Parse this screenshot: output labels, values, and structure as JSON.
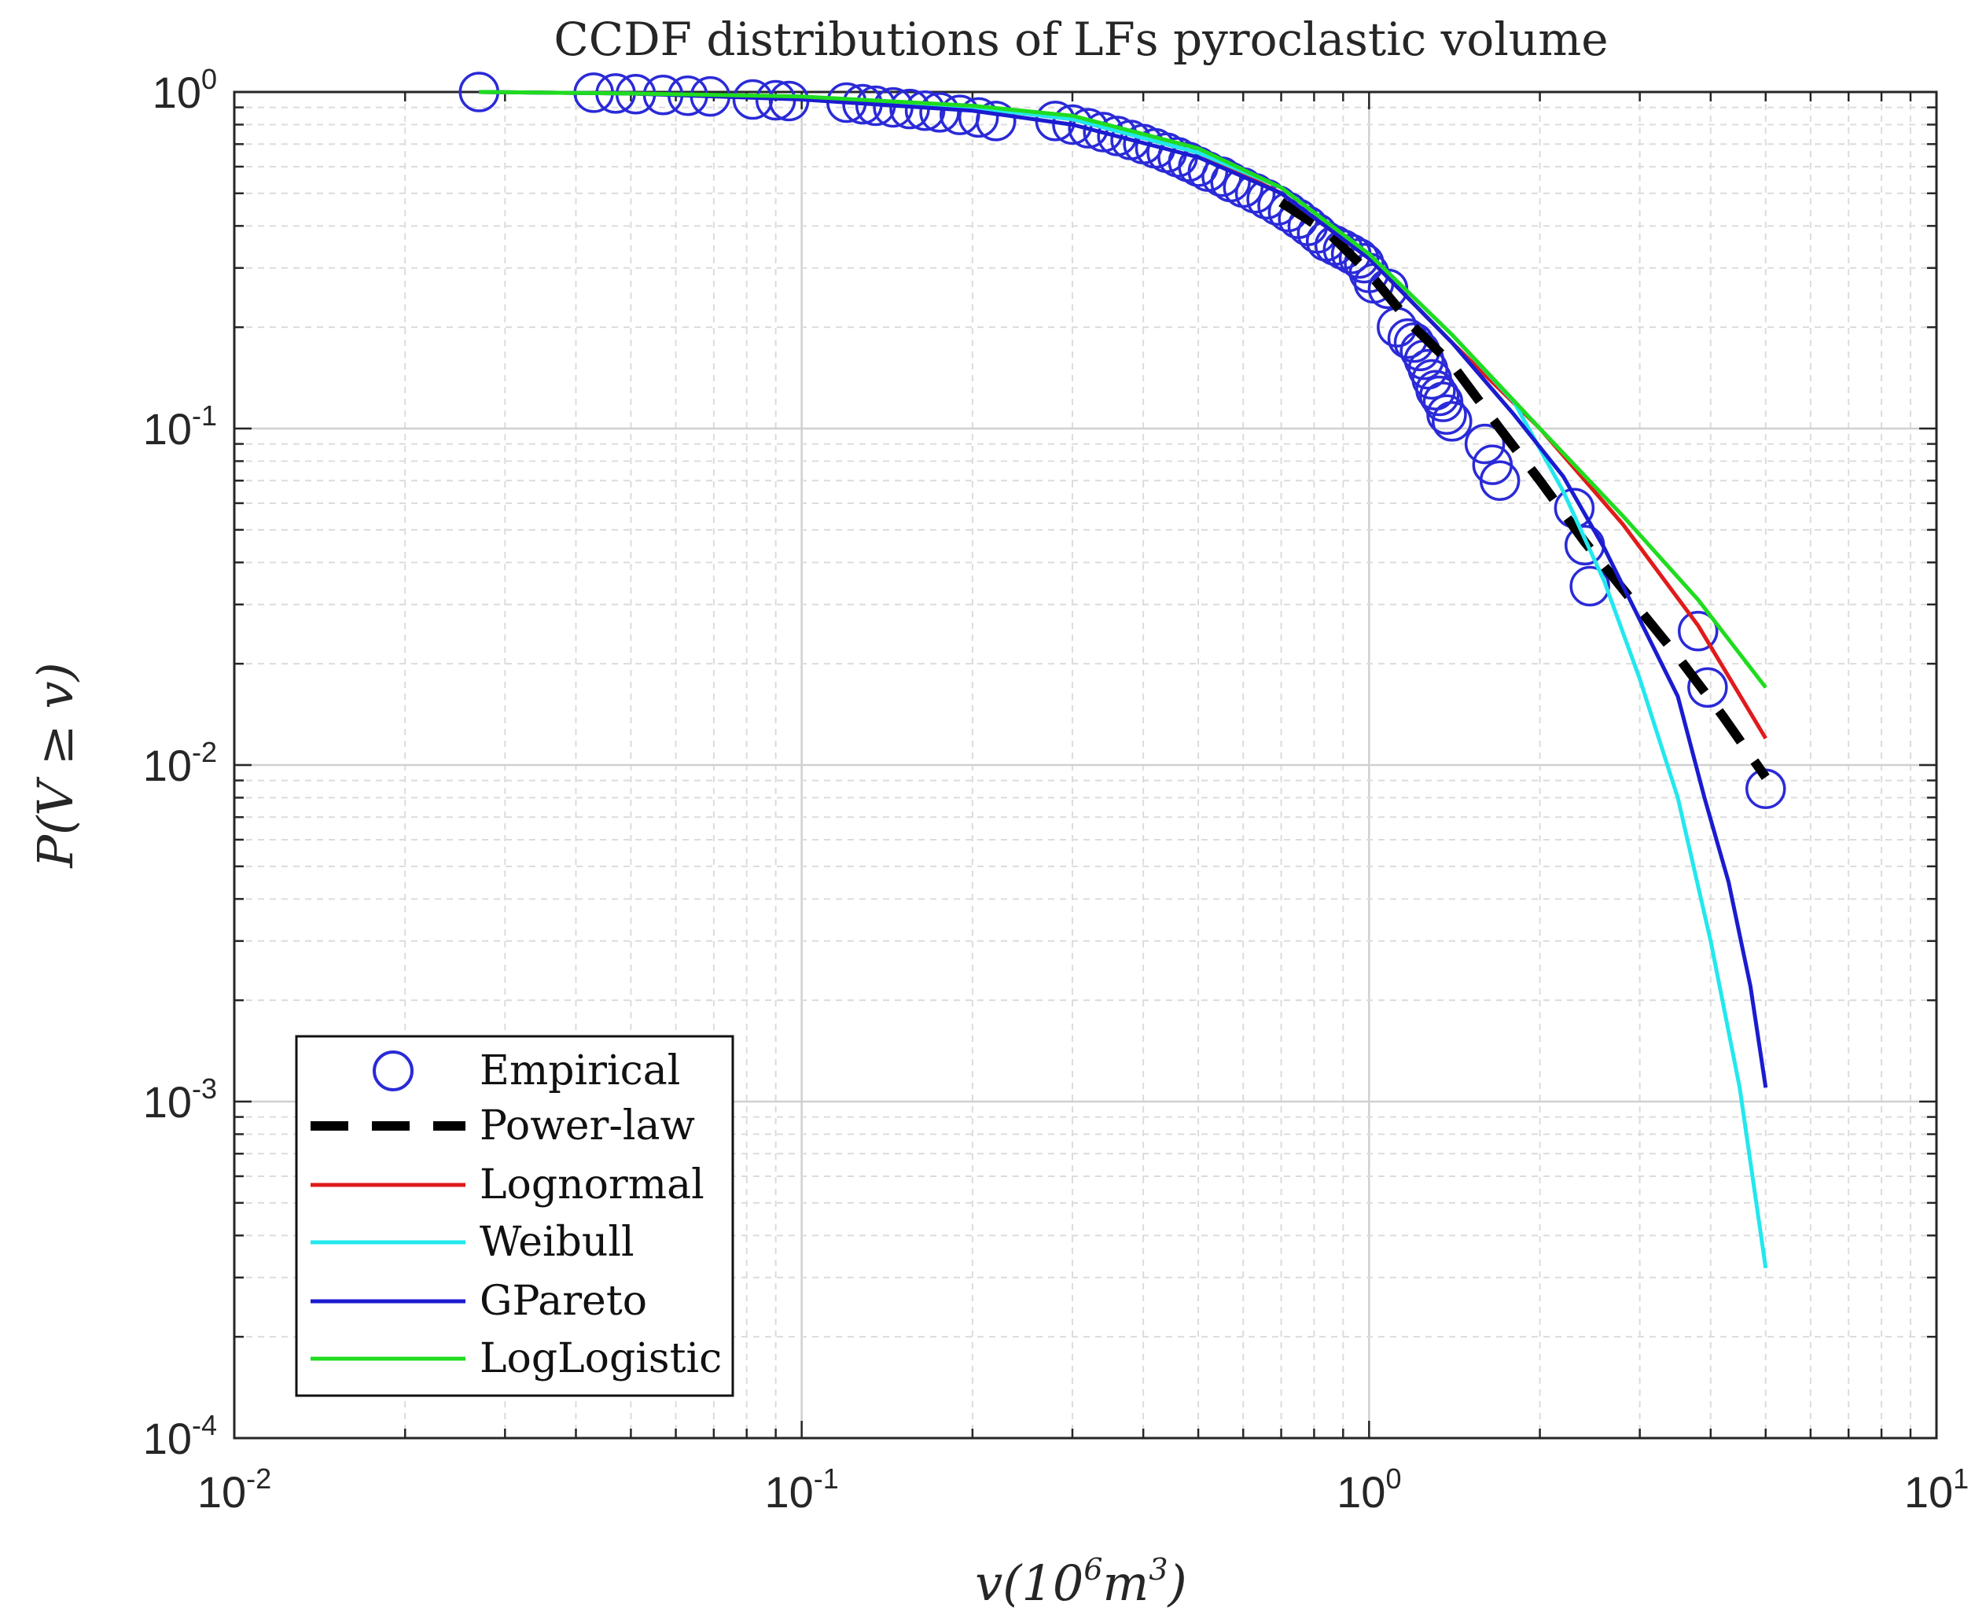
{
  "chart_data": {
    "type": "line",
    "title": "CCDF distributions of LFs pyroclastic volume",
    "xlabel": "v(10^6 m^3)",
    "xlabel_parts": {
      "a": "v(10",
      "b": "6",
      "c": "m",
      "d": "3",
      "e": ")"
    },
    "ylabel": "P(V ≥ v)",
    "xscale": "log",
    "yscale": "log",
    "xlim": [
      0.01,
      10
    ],
    "ylim": [
      0.0001,
      1
    ],
    "grid": true,
    "minor_grid": true,
    "legend_position": "bottom-left",
    "x_ticks": [
      {
        "value": 0.01,
        "base": "10",
        "exp": "-2"
      },
      {
        "value": 0.1,
        "base": "10",
        "exp": "-1"
      },
      {
        "value": 1,
        "base": "10",
        "exp": "0"
      },
      {
        "value": 10,
        "base": "10",
        "exp": "1"
      }
    ],
    "y_ticks": [
      {
        "value": 1,
        "base": "10",
        "exp": "0"
      },
      {
        "value": 0.1,
        "base": "10",
        "exp": "-1"
      },
      {
        "value": 0.01,
        "base": "10",
        "exp": "-2"
      },
      {
        "value": 0.001,
        "base": "10",
        "exp": "-3"
      },
      {
        "value": 0.0001,
        "base": "10",
        "exp": "-4"
      }
    ],
    "series": [
      {
        "name": "Empirical",
        "kind": "markers",
        "color": "#2a2ad8",
        "x": [
          0.027,
          0.043,
          0.047,
          0.051,
          0.057,
          0.063,
          0.069,
          0.082,
          0.09,
          0.095,
          0.12,
          0.128,
          0.135,
          0.145,
          0.155,
          0.165,
          0.175,
          0.19,
          0.205,
          0.22,
          0.28,
          0.3,
          0.32,
          0.34,
          0.36,
          0.38,
          0.4,
          0.42,
          0.44,
          0.46,
          0.48,
          0.5,
          0.52,
          0.55,
          0.57,
          0.6,
          0.63,
          0.66,
          0.69,
          0.72,
          0.75,
          0.78,
          0.81,
          0.84,
          0.87,
          0.9,
          0.93,
          0.96,
          0.98,
          1.0,
          1.02,
          1.08,
          1.12,
          1.17,
          1.2,
          1.23,
          1.25,
          1.27,
          1.29,
          1.31,
          1.33,
          1.35,
          1.37,
          1.4,
          1.6,
          1.65,
          1.7,
          2.3,
          2.4,
          2.45,
          3.8,
          3.95,
          5.0
        ],
        "y": [
          1.0,
          0.995,
          0.99,
          0.985,
          0.98,
          0.975,
          0.97,
          0.95,
          0.945,
          0.94,
          0.93,
          0.92,
          0.91,
          0.9,
          0.89,
          0.88,
          0.87,
          0.855,
          0.84,
          0.82,
          0.82,
          0.8,
          0.78,
          0.76,
          0.74,
          0.72,
          0.7,
          0.68,
          0.66,
          0.64,
          0.62,
          0.6,
          0.58,
          0.56,
          0.54,
          0.52,
          0.5,
          0.48,
          0.46,
          0.44,
          0.42,
          0.4,
          0.38,
          0.36,
          0.35,
          0.34,
          0.33,
          0.32,
          0.31,
          0.29,
          0.27,
          0.26,
          0.2,
          0.185,
          0.18,
          0.17,
          0.16,
          0.15,
          0.14,
          0.13,
          0.125,
          0.12,
          0.11,
          0.105,
          0.09,
          0.078,
          0.07,
          0.058,
          0.045,
          0.034,
          0.025,
          0.017,
          0.0085
        ]
      },
      {
        "name": "Power-law",
        "kind": "dashed",
        "color": "#000000",
        "x": [
          0.7,
          0.85,
          1.0,
          1.2,
          1.4,
          1.7,
          2.0,
          2.4,
          2.9,
          3.5,
          4.2,
          5.0
        ],
        "y": [
          0.47,
          0.38,
          0.29,
          0.2,
          0.155,
          0.1,
          0.07,
          0.046,
          0.031,
          0.021,
          0.014,
          0.0092
        ]
      },
      {
        "name": "Lognormal",
        "kind": "line",
        "color": "#e01b1b",
        "x": [
          0.027,
          0.05,
          0.1,
          0.2,
          0.3,
          0.5,
          0.7,
          1.0,
          1.4,
          2.0,
          2.8,
          3.8,
          5.0
        ],
        "y": [
          1.0,
          0.99,
          0.96,
          0.9,
          0.83,
          0.66,
          0.5,
          0.32,
          0.18,
          0.1,
          0.052,
          0.026,
          0.012
        ]
      },
      {
        "name": "Weibull",
        "kind": "line",
        "color": "#22e8ee",
        "x": [
          0.027,
          0.05,
          0.1,
          0.2,
          0.3,
          0.5,
          0.7,
          1.0,
          1.4,
          1.8,
          2.2,
          2.6,
          3.0,
          3.5,
          4.0,
          4.5,
          5.0
        ],
        "y": [
          1.0,
          0.99,
          0.96,
          0.9,
          0.83,
          0.66,
          0.52,
          0.33,
          0.19,
          0.12,
          0.065,
          0.035,
          0.018,
          0.008,
          0.003,
          0.0011,
          0.00032
        ]
      },
      {
        "name": "GPareto",
        "kind": "line",
        "color": "#1b1bd0",
        "x": [
          0.027,
          0.05,
          0.1,
          0.2,
          0.3,
          0.5,
          0.7,
          1.0,
          1.4,
          1.8,
          2.2,
          2.6,
          3.0,
          3.5,
          3.9,
          4.3,
          4.7,
          5.0
        ],
        "y": [
          1.0,
          0.99,
          0.95,
          0.88,
          0.8,
          0.64,
          0.5,
          0.32,
          0.18,
          0.11,
          0.072,
          0.044,
          0.027,
          0.016,
          0.008,
          0.0045,
          0.0022,
          0.0011
        ]
      },
      {
        "name": "LogLogistic",
        "kind": "line",
        "color": "#1fdc1f",
        "x": [
          0.027,
          0.05,
          0.1,
          0.2,
          0.3,
          0.5,
          0.7,
          1.0,
          1.4,
          2.0,
          2.8,
          3.8,
          5.0
        ],
        "y": [
          1.0,
          0.99,
          0.97,
          0.91,
          0.85,
          0.68,
          0.52,
          0.33,
          0.19,
          0.1,
          0.055,
          0.031,
          0.017
        ]
      }
    ]
  },
  "colors": {
    "axis": "#262626",
    "grid_major": "#d0d0d0",
    "grid_minor": "#dcdcdc",
    "background": "#ffffff"
  }
}
